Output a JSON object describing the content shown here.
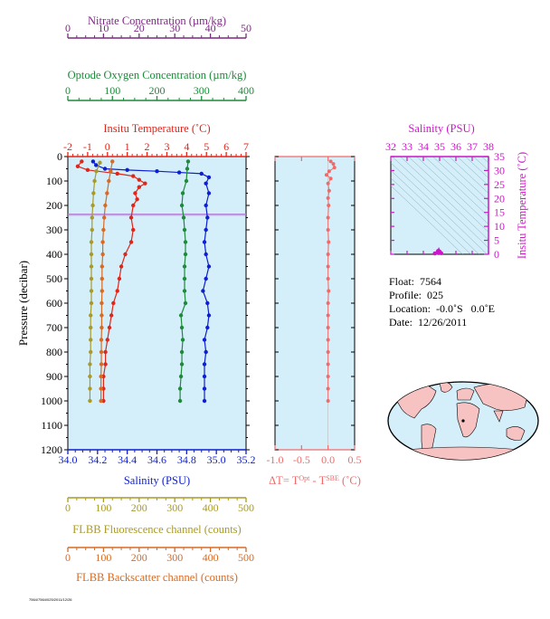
{
  "colors": {
    "nitrate": "#7a2a80",
    "oxygen": "#1e8a3a",
    "temperature": "#e0261a",
    "salinity": "#0d1fd0",
    "salinity_panel": "#cc17c8",
    "fluorescence": "#a89a2a",
    "backscatter": "#d86a22",
    "delta": "#f06a6a",
    "plot_bg": "#d4effa",
    "land": "#f6c2c2"
  },
  "chart_data": [
    {
      "type": "line",
      "panel": "profile",
      "ylabel": "Pressure (decibar)",
      "ylim": [
        1200,
        0
      ],
      "yticks": [
        0,
        100,
        200,
        300,
        400,
        500,
        600,
        700,
        800,
        900,
        1000,
        1100,
        1200
      ],
      "mixed_layer_lines": [
        235,
        240
      ],
      "axes": [
        {
          "key": "nitrate",
          "label": "Nitrate Concentration (µm/kg)",
          "range": [
            0,
            50
          ],
          "ticks": [
            0,
            10,
            20,
            30,
            40,
            50
          ]
        },
        {
          "key": "oxygen",
          "label": "Optode Oxygen Concentration (µm/kg)",
          "range": [
            0,
            400
          ],
          "ticks": [
            0,
            100,
            200,
            300,
            400
          ]
        },
        {
          "key": "temperature",
          "label": "Insitu Temperature (˚C)",
          "range": [
            -2,
            7
          ],
          "ticks": [
            -2,
            -1,
            0,
            1,
            2,
            3,
            4,
            5,
            6,
            7
          ]
        },
        {
          "key": "salinity",
          "label": "Salinity (PSU)",
          "range": [
            34.0,
            35.2
          ],
          "ticks": [
            "34.0",
            "34.2",
            "34.4",
            "34.6",
            "34.8",
            "35.0",
            "35.2"
          ]
        },
        {
          "key": "fluorescence",
          "label": "FLBB Fluorescence channel (counts)",
          "range": [
            0,
            500
          ],
          "ticks": [
            0,
            100,
            200,
            300,
            400,
            500
          ]
        },
        {
          "key": "backscatter",
          "label": "FLBB Backscatter channel (counts)",
          "range": [
            0,
            500
          ],
          "ticks": [
            0,
            100,
            200,
            300,
            400,
            500
          ]
        }
      ],
      "series": [
        {
          "key": "salinity",
          "axis": "salinity",
          "points": [
            [
              34.17,
              20
            ],
            [
              34.19,
              35
            ],
            [
              34.25,
              50
            ],
            [
              34.4,
              55
            ],
            [
              34.6,
              60
            ],
            [
              34.75,
              65
            ],
            [
              34.9,
              70
            ],
            [
              34.95,
              85
            ],
            [
              34.93,
              110
            ],
            [
              34.95,
              150
            ],
            [
              34.93,
              200
            ],
            [
              34.94,
              250
            ],
            [
              34.93,
              300
            ],
            [
              34.92,
              350
            ],
            [
              34.93,
              400
            ],
            [
              34.95,
              450
            ],
            [
              34.93,
              500
            ],
            [
              34.91,
              550
            ],
            [
              34.94,
              600
            ],
            [
              34.95,
              650
            ],
            [
              34.94,
              700
            ],
            [
              34.92,
              750
            ],
            [
              34.93,
              800
            ],
            [
              34.92,
              850
            ],
            [
              34.92,
              900
            ],
            [
              34.92,
              950
            ],
            [
              34.92,
              1000
            ]
          ]
        },
        {
          "key": "oxygen",
          "axis": "oxygen",
          "points": [
            [
              270,
              20
            ],
            [
              268,
              50
            ],
            [
              266,
              100
            ],
            [
              258,
              150
            ],
            [
              256,
              200
            ],
            [
              260,
              250
            ],
            [
              262,
              300
            ],
            [
              264,
              350
            ],
            [
              264,
              400
            ],
            [
              262,
              450
            ],
            [
              262,
              500
            ],
            [
              262,
              550
            ],
            [
              264,
              600
            ],
            [
              254,
              650
            ],
            [
              256,
              700
            ],
            [
              258,
              750
            ],
            [
              256,
              800
            ],
            [
              256,
              850
            ],
            [
              254,
              900
            ],
            [
              252,
              950
            ],
            [
              252,
              1000
            ]
          ]
        },
        {
          "key": "temperature",
          "axis": "temperature",
          "points": [
            [
              -1.3,
              20
            ],
            [
              -1.5,
              40
            ],
            [
              -1.0,
              55
            ],
            [
              0.5,
              70
            ],
            [
              1.3,
              80
            ],
            [
              1.6,
              95
            ],
            [
              1.9,
              110
            ],
            [
              1.6,
              125
            ],
            [
              1.4,
              150
            ],
            [
              1.5,
              175
            ],
            [
              1.3,
              200
            ],
            [
              1.2,
              250
            ],
            [
              1.3,
              300
            ],
            [
              1.2,
              350
            ],
            [
              0.9,
              400
            ],
            [
              0.7,
              450
            ],
            [
              0.6,
              500
            ],
            [
              0.5,
              550
            ],
            [
              0.3,
              600
            ],
            [
              0.2,
              650
            ],
            [
              0.1,
              700
            ],
            [
              0.0,
              750
            ],
            [
              -0.1,
              800
            ],
            [
              -0.1,
              850
            ],
            [
              -0.2,
              900
            ],
            [
              -0.2,
              950
            ],
            [
              -0.2,
              1000
            ]
          ]
        },
        {
          "key": "fluorescence",
          "axis": "fluorescence",
          "points": [
            [
              90,
              25
            ],
            [
              80,
              60
            ],
            [
              75,
              100
            ],
            [
              72,
              150
            ],
            [
              70,
              200
            ],
            [
              68,
              250
            ],
            [
              68,
              300
            ],
            [
              66,
              350
            ],
            [
              66,
              400
            ],
            [
              66,
              450
            ],
            [
              66,
              500
            ],
            [
              66,
              550
            ],
            [
              66,
              600
            ],
            [
              64,
              650
            ],
            [
              64,
              700
            ],
            [
              64,
              750
            ],
            [
              64,
              800
            ],
            [
              62,
              850
            ],
            [
              62,
              900
            ],
            [
              62,
              950
            ],
            [
              62,
              1000
            ]
          ]
        },
        {
          "key": "backscatter",
          "axis": "backscatter",
          "points": [
            [
              125,
              20
            ],
            [
              120,
              60
            ],
            [
              115,
              100
            ],
            [
              110,
              150
            ],
            [
              105,
              200
            ],
            [
              102,
              250
            ],
            [
              100,
              300
            ],
            [
              98,
              350
            ],
            [
              98,
              400
            ],
            [
              96,
              450
            ],
            [
              96,
              500
            ],
            [
              96,
              550
            ],
            [
              95,
              600
            ],
            [
              95,
              650
            ],
            [
              95,
              700
            ],
            [
              94,
              750
            ],
            [
              94,
              800
            ],
            [
              94,
              850
            ],
            [
              93,
              900
            ],
            [
              93,
              950
            ],
            [
              93,
              1000
            ]
          ]
        }
      ]
    },
    {
      "type": "scatter",
      "panel": "delta_t",
      "xlabel": "ΔT= T",
      "xlabel_sup1": "Opt",
      "xlabel_mid": " - T",
      "xlabel_sup2": "SBE",
      "xlabel_end": " (˚C)",
      "xlim": [
        -1.0,
        0.5
      ],
      "xticks": [
        "-1.0",
        "-0.5",
        "0.0",
        "0.5"
      ],
      "ylim": [
        1200,
        0
      ],
      "points": [
        [
          0.05,
          20
        ],
        [
          0.1,
          30
        ],
        [
          0.12,
          45
        ],
        [
          0.02,
          60
        ],
        [
          -0.03,
          75
        ],
        [
          0.05,
          90
        ],
        [
          0.0,
          110
        ],
        [
          0.02,
          140
        ],
        [
          0.0,
          170
        ],
        [
          0.01,
          200
        ],
        [
          0.0,
          250
        ],
        [
          0.0,
          300
        ],
        [
          0.01,
          350
        ],
        [
          0.0,
          400
        ],
        [
          0.0,
          450
        ],
        [
          0.0,
          500
        ],
        [
          0.01,
          550
        ],
        [
          0.0,
          600
        ],
        [
          0.0,
          650
        ],
        [
          0.0,
          700
        ],
        [
          0.0,
          750
        ],
        [
          0.0,
          800
        ],
        [
          0.0,
          850
        ],
        [
          0.0,
          900
        ],
        [
          0.0,
          950
        ],
        [
          0.0,
          1000
        ]
      ]
    },
    {
      "type": "scatter",
      "panel": "ts",
      "title": "Salinity (PSU)",
      "xlim": [
        32,
        38
      ],
      "xticks": [
        32,
        33,
        34,
        35,
        36,
        37,
        38
      ],
      "ylabel": "Insitu Temperature (˚C)",
      "ylim": [
        0,
        35
      ],
      "yticks": [
        0,
        5,
        10,
        15,
        20,
        25,
        30,
        35
      ],
      "points": [
        [
          34.9,
          1.2
        ],
        [
          35.0,
          1.0
        ],
        [
          34.95,
          0.8
        ],
        [
          34.85,
          0.6
        ],
        [
          35.1,
          0.4
        ],
        [
          34.7,
          0.3
        ]
      ]
    }
  ],
  "info": {
    "float": "Float:  7564",
    "profile": "Profile:  025",
    "location": "Location:  -0.0˚S   0.0˚E",
    "date": "Date:  12/26/2011"
  },
  "footnote": "7564/7564/025/2011/12/26"
}
